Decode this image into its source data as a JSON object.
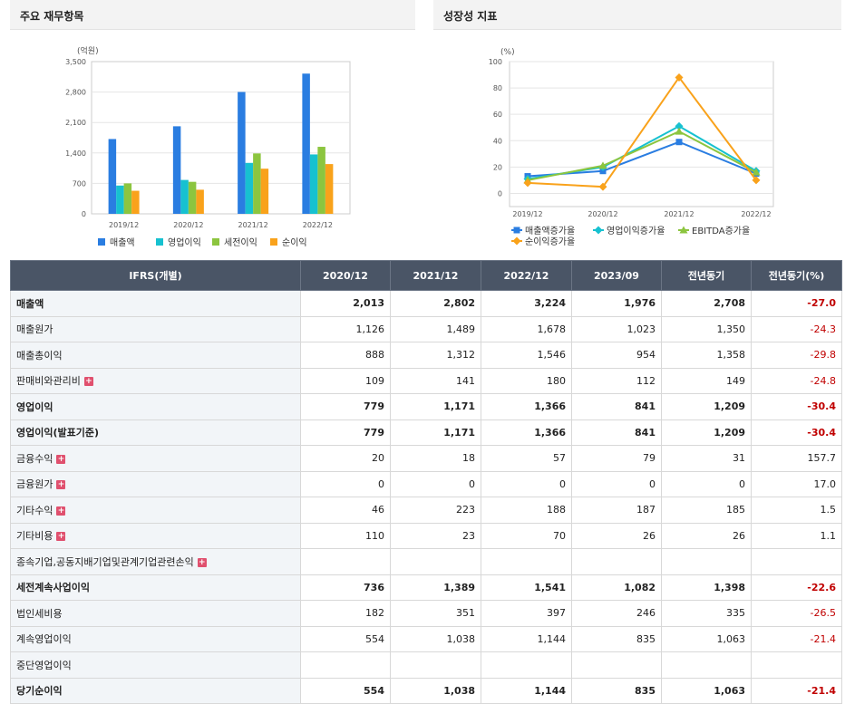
{
  "left_panel": {
    "title": "주요 재무항목"
  },
  "right_panel": {
    "title": "성장성 지표"
  },
  "chart_data": [
    {
      "type": "bar",
      "unit_label": "(억원)",
      "categories": [
        "2019/12",
        "2020/12",
        "2021/12",
        "2022/12"
      ],
      "ylim": [
        0,
        3500
      ],
      "yticks": [
        "0",
        "700",
        "1,400",
        "2,100",
        "2,800",
        "3,500"
      ],
      "ytick_values": [
        0,
        700,
        1400,
        2100,
        2800,
        3500
      ],
      "grid": true,
      "legend_position": "bottom",
      "series": [
        {
          "name": "매출액",
          "color": "#2a7de1",
          "values": [
            1720,
            2013,
            2802,
            3224
          ]
        },
        {
          "name": "영업이익",
          "color": "#17c1d0",
          "values": [
            650,
            779,
            1171,
            1366
          ]
        },
        {
          "name": "세전이익",
          "color": "#8cc53f",
          "values": [
            700,
            736,
            1389,
            1541
          ]
        },
        {
          "name": "순이익",
          "color": "#f9a21b",
          "values": [
            530,
            554,
            1038,
            1144
          ]
        }
      ]
    },
    {
      "type": "line",
      "unit_label": "(%)",
      "categories": [
        "2019/12",
        "2020/12",
        "2021/12",
        "2022/12"
      ],
      "ylim": [
        -10,
        100
      ],
      "yticks": [
        "0",
        "20",
        "40",
        "60",
        "80",
        "100"
      ],
      "ytick_values": [
        0,
        20,
        40,
        60,
        80,
        100
      ],
      "grid": true,
      "legend_position": "bottom",
      "series": [
        {
          "name": "매출액증가율",
          "color": "#2a7de1",
          "marker": "square",
          "values": [
            13,
            17,
            39,
            15
          ]
        },
        {
          "name": "영업이익증가율",
          "color": "#17c1d0",
          "marker": "diamond",
          "values": [
            11,
            20,
            51,
            17
          ]
        },
        {
          "name": "EBITDA증가율",
          "color": "#8cc53f",
          "marker": "triangle",
          "values": [
            10,
            21,
            47,
            16
          ]
        },
        {
          "name": "순이익증가율",
          "color": "#f9a21b",
          "marker": "diamond",
          "values": [
            8,
            5,
            88,
            10
          ]
        }
      ]
    }
  ],
  "table": {
    "headers": [
      "IFRS(개별)",
      "2020/12",
      "2021/12",
      "2022/12",
      "2023/09",
      "전년동기",
      "전년동기(%)"
    ],
    "rows": [
      {
        "label": "매출액",
        "bold": true,
        "plus": false,
        "values": [
          "2,013",
          "2,802",
          "3,224",
          "1,976",
          "2,708",
          "-27.0"
        ]
      },
      {
        "label": "매출원가",
        "bold": false,
        "plus": false,
        "values": [
          "1,126",
          "1,489",
          "1,678",
          "1,023",
          "1,350",
          "-24.3"
        ]
      },
      {
        "label": "매출총이익",
        "bold": false,
        "plus": false,
        "values": [
          "888",
          "1,312",
          "1,546",
          "954",
          "1,358",
          "-29.8"
        ]
      },
      {
        "label": "판매비와관리비",
        "bold": false,
        "plus": true,
        "values": [
          "109",
          "141",
          "180",
          "112",
          "149",
          "-24.8"
        ]
      },
      {
        "label": "영업이익",
        "bold": true,
        "plus": false,
        "values": [
          "779",
          "1,171",
          "1,366",
          "841",
          "1,209",
          "-30.4"
        ]
      },
      {
        "label": "영업이익(발표기준)",
        "bold": true,
        "plus": false,
        "values": [
          "779",
          "1,171",
          "1,366",
          "841",
          "1,209",
          "-30.4"
        ]
      },
      {
        "label": "금융수익",
        "bold": false,
        "plus": true,
        "values": [
          "20",
          "18",
          "57",
          "79",
          "31",
          "157.7"
        ]
      },
      {
        "label": "금융원가",
        "bold": false,
        "plus": true,
        "values": [
          "0",
          "0",
          "0",
          "0",
          "0",
          "17.0"
        ]
      },
      {
        "label": "기타수익",
        "bold": false,
        "plus": true,
        "values": [
          "46",
          "223",
          "188",
          "187",
          "185",
          "1.5"
        ]
      },
      {
        "label": "기타비용",
        "bold": false,
        "plus": true,
        "values": [
          "110",
          "23",
          "70",
          "26",
          "26",
          "1.1"
        ]
      },
      {
        "label": "종속기업,공동지배기업및관계기업관련손익",
        "bold": false,
        "plus": true,
        "values": [
          "",
          "",
          "",
          "",
          "",
          ""
        ]
      },
      {
        "label": "세전계속사업이익",
        "bold": true,
        "plus": false,
        "values": [
          "736",
          "1,389",
          "1,541",
          "1,082",
          "1,398",
          "-22.6"
        ]
      },
      {
        "label": "법인세비용",
        "bold": false,
        "plus": false,
        "values": [
          "182",
          "351",
          "397",
          "246",
          "335",
          "-26.5"
        ]
      },
      {
        "label": "계속영업이익",
        "bold": false,
        "plus": false,
        "values": [
          "554",
          "1,038",
          "1,144",
          "835",
          "1,063",
          "-21.4"
        ]
      },
      {
        "label": "중단영업이익",
        "bold": false,
        "plus": false,
        "values": [
          "",
          "",
          "",
          "",
          "",
          ""
        ]
      },
      {
        "label": "당기순이익",
        "bold": true,
        "plus": false,
        "values": [
          "554",
          "1,038",
          "1,144",
          "835",
          "1,063",
          "-21.4"
        ]
      }
    ]
  }
}
